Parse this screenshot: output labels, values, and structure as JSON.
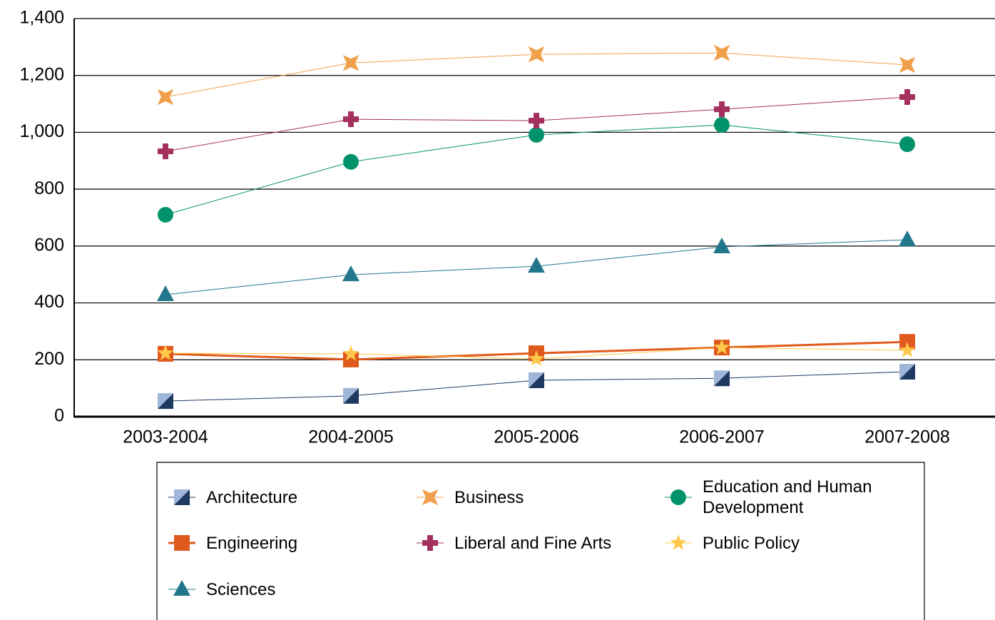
{
  "chart_data": {
    "type": "line",
    "categories": [
      "2003-2004",
      "2004-2005",
      "2005-2006",
      "2006-2007",
      "2007-2008"
    ],
    "ylim": [
      0,
      1400
    ],
    "yticks": [
      0,
      200,
      400,
      600,
      800,
      {
        "value": 1000,
        "label": "1,000"
      },
      {
        "value": 1200,
        "label": "1,200"
      },
      {
        "value": 1400,
        "label": "1,400"
      }
    ],
    "grid": true,
    "series": [
      {
        "name": "Architecture",
        "color": "#1f3a60",
        "marker": "split-square",
        "values": [
          55,
          73,
          128,
          135,
          158
        ]
      },
      {
        "name": "Business",
        "color": "#f0a04b",
        "marker": "four-star",
        "values": [
          1124,
          1244,
          1274,
          1279,
          1237
        ]
      },
      {
        "name": "Education and Human Development",
        "color": "#00936b",
        "marker": "circle",
        "values": [
          710,
          896,
          991,
          1026,
          958
        ]
      },
      {
        "name": "Engineering",
        "color": "#e05a1e",
        "marker": "square",
        "values": [
          221,
          201,
          223,
          243,
          263
        ]
      },
      {
        "name": "Liberal and Fine Arts",
        "color": "#a3305e",
        "marker": "plus",
        "values": [
          933,
          1046,
          1041,
          1081,
          1124
        ]
      },
      {
        "name": "Public Policy",
        "color": "#ffc84a",
        "marker": "star",
        "values": [
          223,
          221,
          203,
          243,
          233
        ]
      },
      {
        "name": "Sciences",
        "color": "#23778c",
        "marker": "triangle",
        "values": [
          429,
          499,
          529,
          597,
          622
        ]
      }
    ]
  }
}
